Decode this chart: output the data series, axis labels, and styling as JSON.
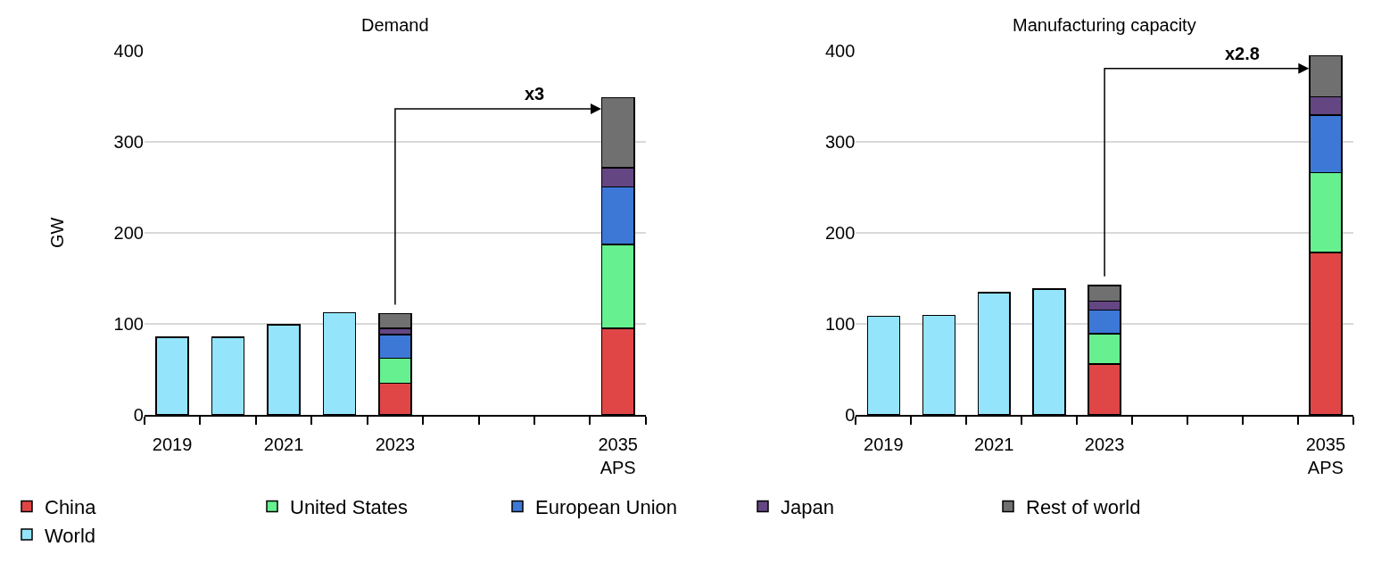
{
  "chart_data": [
    {
      "type": "bar",
      "title": "Demand",
      "ylabel": "GW",
      "stacked": true,
      "legend": "bottom",
      "grid": "y",
      "categories": [
        "2019",
        null,
        "2021",
        null,
        "2023",
        null,
        null,
        null,
        "2035\nAPS"
      ],
      "ylim": [
        0,
        400
      ],
      "yticks": [
        0,
        100,
        200,
        300,
        400
      ],
      "annotations": [
        "x3"
      ],
      "series": [
        {
          "name": "China",
          "color": "#e04646",
          "values": [
            null,
            null,
            null,
            null,
            35,
            null,
            null,
            null,
            95
          ]
        },
        {
          "name": "United States",
          "color": "#66f08f",
          "values": [
            null,
            null,
            null,
            null,
            27,
            null,
            null,
            null,
            92
          ]
        },
        {
          "name": "European Union",
          "color": "#3d78d6",
          "values": [
            null,
            null,
            null,
            null,
            26,
            null,
            null,
            null,
            63
          ]
        },
        {
          "name": "Japan",
          "color": "#644683",
          "values": [
            null,
            null,
            null,
            null,
            7,
            null,
            null,
            null,
            21
          ]
        },
        {
          "name": "Rest of world",
          "color": "#707070",
          "values": [
            null,
            null,
            null,
            null,
            16,
            null,
            null,
            null,
            77
          ]
        },
        {
          "name": "World",
          "color": "#94e5fc",
          "values": [
            85,
            85,
            99,
            112,
            null,
            null,
            null,
            null,
            null
          ]
        }
      ]
    },
    {
      "type": "bar",
      "title": "Manufacturing capacity",
      "stacked": true,
      "grid": "y",
      "categories": [
        "2019",
        null,
        "2021",
        null,
        "2023",
        null,
        null,
        null,
        "2035\nAPS"
      ],
      "ylim": [
        0,
        400
      ],
      "yticks": [
        0,
        100,
        200,
        300,
        400
      ],
      "annotations": [
        "x2.8"
      ],
      "series": [
        {
          "color": "#e04646",
          "values": [
            null,
            null,
            null,
            null,
            56,
            null,
            null,
            null,
            178
          ]
        },
        {
          "color": "#66f08f",
          "values": [
            null,
            null,
            null,
            null,
            33,
            null,
            null,
            null,
            88
          ]
        },
        {
          "color": "#3d78d6",
          "values": [
            null,
            null,
            null,
            null,
            26,
            null,
            null,
            null,
            63
          ]
        },
        {
          "color": "#644683",
          "values": [
            null,
            null,
            null,
            null,
            10,
            null,
            null,
            null,
            20
          ]
        },
        {
          "color": "#707070",
          "values": [
            null,
            null,
            null,
            null,
            17,
            null,
            null,
            null,
            45
          ]
        },
        {
          "color": "#94e5fc",
          "values": [
            108,
            109,
            134,
            138,
            null,
            null,
            null,
            null,
            null
          ]
        }
      ]
    }
  ]
}
